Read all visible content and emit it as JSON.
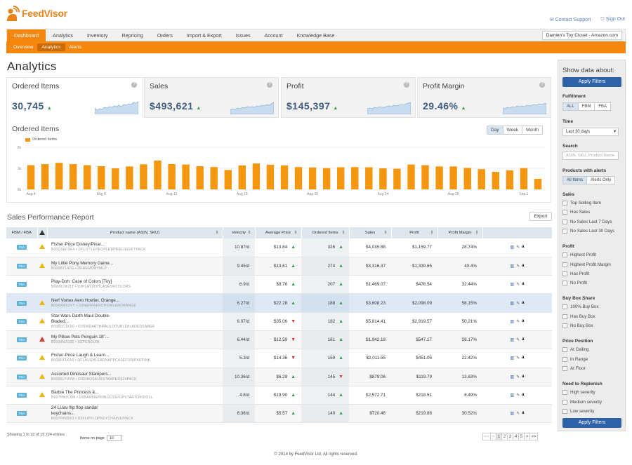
{
  "brand": {
    "logo_text": "FeedVisor"
  },
  "header": {
    "contact_support": "Contact Support",
    "sign_out": "Sign Out"
  },
  "nav": {
    "tabs": [
      "Dashboard",
      "Analytics",
      "Inventory",
      "Repricing",
      "Orders",
      "Import & Export",
      "Issues",
      "Account",
      "Knowledge Base"
    ],
    "active": "Dashboard",
    "account_select": "Damien's Toy Closet - Amazon.com"
  },
  "subnav": {
    "items": [
      "Overview",
      "Analytics",
      "Alerts"
    ],
    "active": "Analytics"
  },
  "page_title": "Analytics",
  "kpis": [
    {
      "label": "Ordered Items",
      "value": "30,745",
      "trend": "up"
    },
    {
      "label": "Sales",
      "value": "$493,621",
      "trend": "up"
    },
    {
      "label": "Profit",
      "value": "$145,397",
      "trend": "up"
    },
    {
      "label": "Profit Margin",
      "value": "29.46%",
      "trend": "up"
    }
  ],
  "chart_section": {
    "title": "Ordered Items",
    "ranges": [
      "Day",
      "Week",
      "Month"
    ],
    "active_range": "Day"
  },
  "chart_data": {
    "type": "bar",
    "title": "Ordered Items",
    "series": [
      {
        "name": "Ordered Items",
        "values": [
          1150,
          1200,
          1260,
          1200,
          1150,
          1100,
          1000,
          1090,
          1190,
          1370,
          1200,
          1180,
          1100,
          1060,
          920,
          1140,
          1230,
          1170,
          1140,
          1060,
          1040,
          1010,
          1050,
          1060,
          1050,
          1000,
          980,
          1180,
          1150,
          1090,
          1090,
          1020,
          960,
          830,
          900,
          1010,
          500
        ]
      }
    ],
    "x_tick_labels": [
      "Aug 4",
      "Aug 8",
      "Aug 12",
      "Aug 16",
      "Aug 20",
      "Aug 24",
      "Aug 28",
      "Sep 1"
    ],
    "y_tick_labels": [
      "0k",
      "1k",
      "2k"
    ],
    "ylim": [
      0,
      2000
    ],
    "grid": true,
    "legend": "top-left",
    "color": "#f5960f"
  },
  "report": {
    "title": "Sales Performance Report",
    "export_label": "Export",
    "columns": [
      "FBM / FBA",
      "",
      "Product name (ASIN, SKU)",
      "Velocity",
      "Average Price",
      "Ordered Items",
      "Sales",
      "Profit",
      "Profit Margin",
      ""
    ],
    "rows": [
      {
        "fba": "FBA",
        "alert": "yellow",
        "name": "Fisher-Price Disney/Pixar...",
        "name2": "",
        "sku": "B00Q9EFSK4 • DFLITTLEPEOPLEWHEELIEGIFTPACK",
        "velocity": "10.87/d",
        "avg_price": "$13.84",
        "price_trend": "up",
        "ordered": "326",
        "ord_trend": "up",
        "sales": "$4,035.88",
        "profit": "$1,159.77",
        "margin": "28.74%"
      },
      {
        "fba": "FBA",
        "alert": "yellow",
        "name": "My Little Pony Memory Game...",
        "name2": "",
        "sku": "B000BT147G • DFMEMORYMLP",
        "velocity": "9.45/d",
        "avg_price": "$13.61",
        "price_trend": "up",
        "ordered": "274",
        "ord_trend": "up",
        "sales": "$3,316.37",
        "profit": "$1,339.65",
        "margin": "40.4%"
      },
      {
        "fba": "FBA",
        "alert": "none",
        "name": "Play-Doh: Case of Colors [Toy]",
        "name2": "",
        "sku": "B00001WJ1T • D3PLAYDOHCASEOFCOLORS",
        "velocity": "6.9/d",
        "avg_price": "$9.78",
        "price_trend": "up",
        "ordered": "207",
        "ord_trend": "up",
        "sales": "$1,469.07",
        "profit": "$476.54",
        "margin": "32.44%"
      },
      {
        "fba": "FBA",
        "alert": "yellow",
        "name": "Nerf Vortex Aero Howler, Orange...",
        "name2": "",
        "sku": "B004XMX2VY • D3NERFAEROHOWLERORANGE",
        "velocity": "6.27/d",
        "avg_price": "$22.28",
        "price_trend": "up",
        "ordered": "188",
        "ord_trend": "up",
        "sales": "$3,608.23",
        "profit": "$2,098.09",
        "margin": "58.15%"
      },
      {
        "fba": "FBA",
        "alert": "yellow",
        "name": "Star Wars Darth Maul Double-",
        "name2": "Bladed...",
        "sku": "B006CC1KX0 • D3SWDARTHMAULDOUBLEBLADEDSABER",
        "velocity": "6.07/d",
        "avg_price": "$35.06",
        "price_trend": "down",
        "ordered": "182",
        "ord_trend": "up",
        "sales": "$5,814.41",
        "profit": "$2,919.57",
        "margin": "50.21%"
      },
      {
        "fba": "FBA",
        "alert": "red",
        "name": "My Pillow Pets Penguin 18\"...",
        "name2": "",
        "sku": "B0039NJO3E • D3PENGUIN",
        "velocity": "6.44/d",
        "avg_price": "$12.59",
        "price_trend": "down",
        "ordered": "161",
        "ord_trend": "up",
        "sales": "$1,942.18",
        "profit": "$547.17",
        "margin": "28.17%"
      },
      {
        "fba": "FBA",
        "alert": "yellow",
        "name": "Fisher-Price Laugh & Learn...",
        "name2": "",
        "sku": "B009PZ1KA5 • DFLAUGHLEARNAPPCASEFORIPADPINK",
        "velocity": "5.3/d",
        "avg_price": "$14.36",
        "price_trend": "down",
        "ordered": "159",
        "ord_trend": "up",
        "sales": "$2,011.55",
        "profit": "$451.05",
        "margin": "22.42%"
      },
      {
        "fba": "FBA",
        "alert": "yellow",
        "name": "Assorted Dinosaur Stampers...",
        "name2": "",
        "sku": "B0006LYVVM • D3DINOSAURSTAMPERS24PACK",
        "velocity": "10.36/d",
        "avg_price": "$6.29",
        "price_trend": "up",
        "ordered": "145",
        "ord_trend": "down",
        "sales": "$879.06",
        "profit": "$119.79",
        "margin": "13.63%"
      },
      {
        "fba": "FBA",
        "alert": "yellow",
        "name": "Barbie The Princess &...",
        "name2": "",
        "sku": "B007PM3C0M • D0BARBIEPRINCESSPOPSTARTORIDOLL",
        "velocity": "4.8/d",
        "avg_price": "$19.90",
        "price_trend": "up",
        "ordered": "144",
        "ord_trend": "up",
        "sales": "$2,572.71",
        "profit": "$218.51",
        "margin": "8.49%"
      },
      {
        "fba": "FBA",
        "alert": "none",
        "name": "24 LUau flip flop sandal",
        "name2": "keychains...",
        "sku": "B007P4V56O • D3FLIPFLOPKEYCHAIN12PACK",
        "velocity": "6.36/d",
        "avg_price": "$5.57",
        "price_trend": "up",
        "ordered": "140",
        "ord_trend": "up",
        "sales": "$720.46",
        "profit": "$219.88",
        "margin": "30.52%"
      }
    ],
    "showing": "Showing 1 to 10 of 19,724 entries",
    "items_on_page_label": "Items on page",
    "items_on_page": "10",
    "pager": [
      "<<",
      "<",
      "1",
      "2",
      "3",
      "4",
      "5",
      ">",
      ">>"
    ],
    "current_page": "1"
  },
  "sidebar": {
    "title": "Show data about:",
    "apply": "Apply Filters",
    "fulfillment_label": "Fulfillment",
    "fulfillment": [
      "ALL",
      "FBM",
      "FBA"
    ],
    "time_label": "Time",
    "time_value": "Last 30 days",
    "search_label": "Search",
    "search_placeholder": "ASIN, SKU, Product Name",
    "alerts_label": "Products with alerts",
    "alerts": [
      "All Items",
      "Alerts Only"
    ],
    "groups": [
      {
        "label": "Sales",
        "items": [
          "Top Selling Item",
          "Has Sales",
          "No Sales Last 7 Days",
          "No Sales Last 30 Days"
        ]
      },
      {
        "label": "Profit",
        "items": [
          "Highest Profit",
          "Highest Profit Margin",
          "Has Profit",
          "No Profit"
        ]
      },
      {
        "label": "Buy Box Share",
        "items": [
          "100% Buy Box",
          "Has Buy Box",
          "No Buy Box"
        ]
      },
      {
        "label": "Price Position",
        "items": [
          "At Ceiling",
          "In Range",
          "At Floor"
        ]
      },
      {
        "label": "Need to Replenish",
        "items": [
          "High severity",
          "Medium severity",
          "Low severity"
        ]
      }
    ]
  },
  "footer": {
    "copyright": "© 2014 by FeedVisor Ltd. All rights reserved."
  }
}
